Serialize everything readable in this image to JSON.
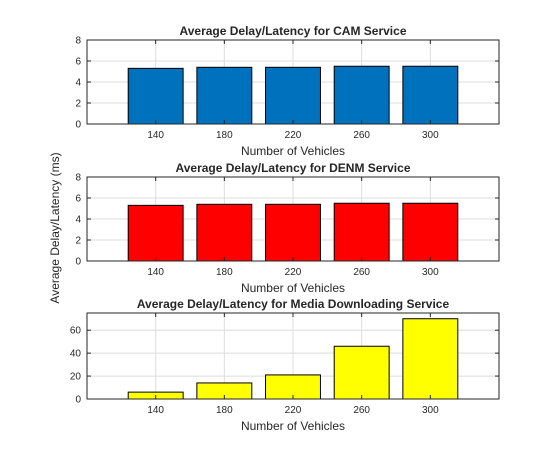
{
  "figure": {
    "shared_ylabel": "Average Delay/Latency (ms)",
    "background": "#ffffff"
  },
  "chart_data": [
    {
      "type": "bar",
      "title": "Average Delay/Latency for CAM Service",
      "xlabel": "Number of Vehicles",
      "ylabel": "",
      "categories": [
        "140",
        "180",
        "220",
        "260",
        "300"
      ],
      "values": [
        5.3,
        5.4,
        5.4,
        5.5,
        5.5
      ],
      "xlim": [
        100,
        340
      ],
      "ylim": [
        0,
        8
      ],
      "yticks": [
        0,
        2,
        4,
        6,
        8
      ],
      "grid": true,
      "color": "#0072bd"
    },
    {
      "type": "bar",
      "title": "Average Delay/Latency for DENM Service",
      "xlabel": "Number of Vehicles",
      "ylabel": "",
      "categories": [
        "140",
        "180",
        "220",
        "260",
        "300"
      ],
      "values": [
        5.3,
        5.4,
        5.4,
        5.5,
        5.5
      ],
      "xlim": [
        100,
        340
      ],
      "ylim": [
        0,
        8
      ],
      "yticks": [
        0,
        2,
        4,
        6,
        8
      ],
      "grid": true,
      "color": "#ff0000"
    },
    {
      "type": "bar",
      "title": "Average Delay/Latency for Media Downloading Service",
      "xlabel": "Number of Vehicles",
      "ylabel": "",
      "categories": [
        "140",
        "180",
        "220",
        "260",
        "300"
      ],
      "values": [
        6,
        14,
        21,
        46,
        70
      ],
      "xlim": [
        100,
        340
      ],
      "ylim": [
        0,
        75
      ],
      "yticks": [
        0,
        20,
        40,
        60
      ],
      "grid": true,
      "color": "#ffff00"
    }
  ]
}
